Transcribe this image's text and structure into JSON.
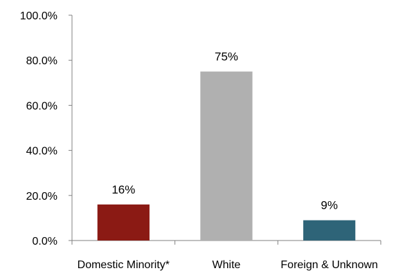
{
  "chart_data": {
    "type": "bar",
    "categories": [
      "Domestic Minority*",
      "White",
      "Foreign & Unknown"
    ],
    "values": [
      16,
      75,
      9
    ],
    "data_labels": [
      "16%",
      "75%",
      "9%"
    ],
    "colors": [
      "#8B1A14",
      "#B0B0B0",
      "#2E6478"
    ],
    "ylim": [
      0,
      100
    ],
    "yticks": [
      0,
      20,
      40,
      60,
      80,
      100
    ],
    "ytick_labels": [
      "0.0%",
      "20.0%",
      "40.0%",
      "60.0%",
      "80.0%",
      "100.0%"
    ],
    "title": "",
    "xlabel": "",
    "ylabel": "",
    "grid": false,
    "legend": "none"
  }
}
